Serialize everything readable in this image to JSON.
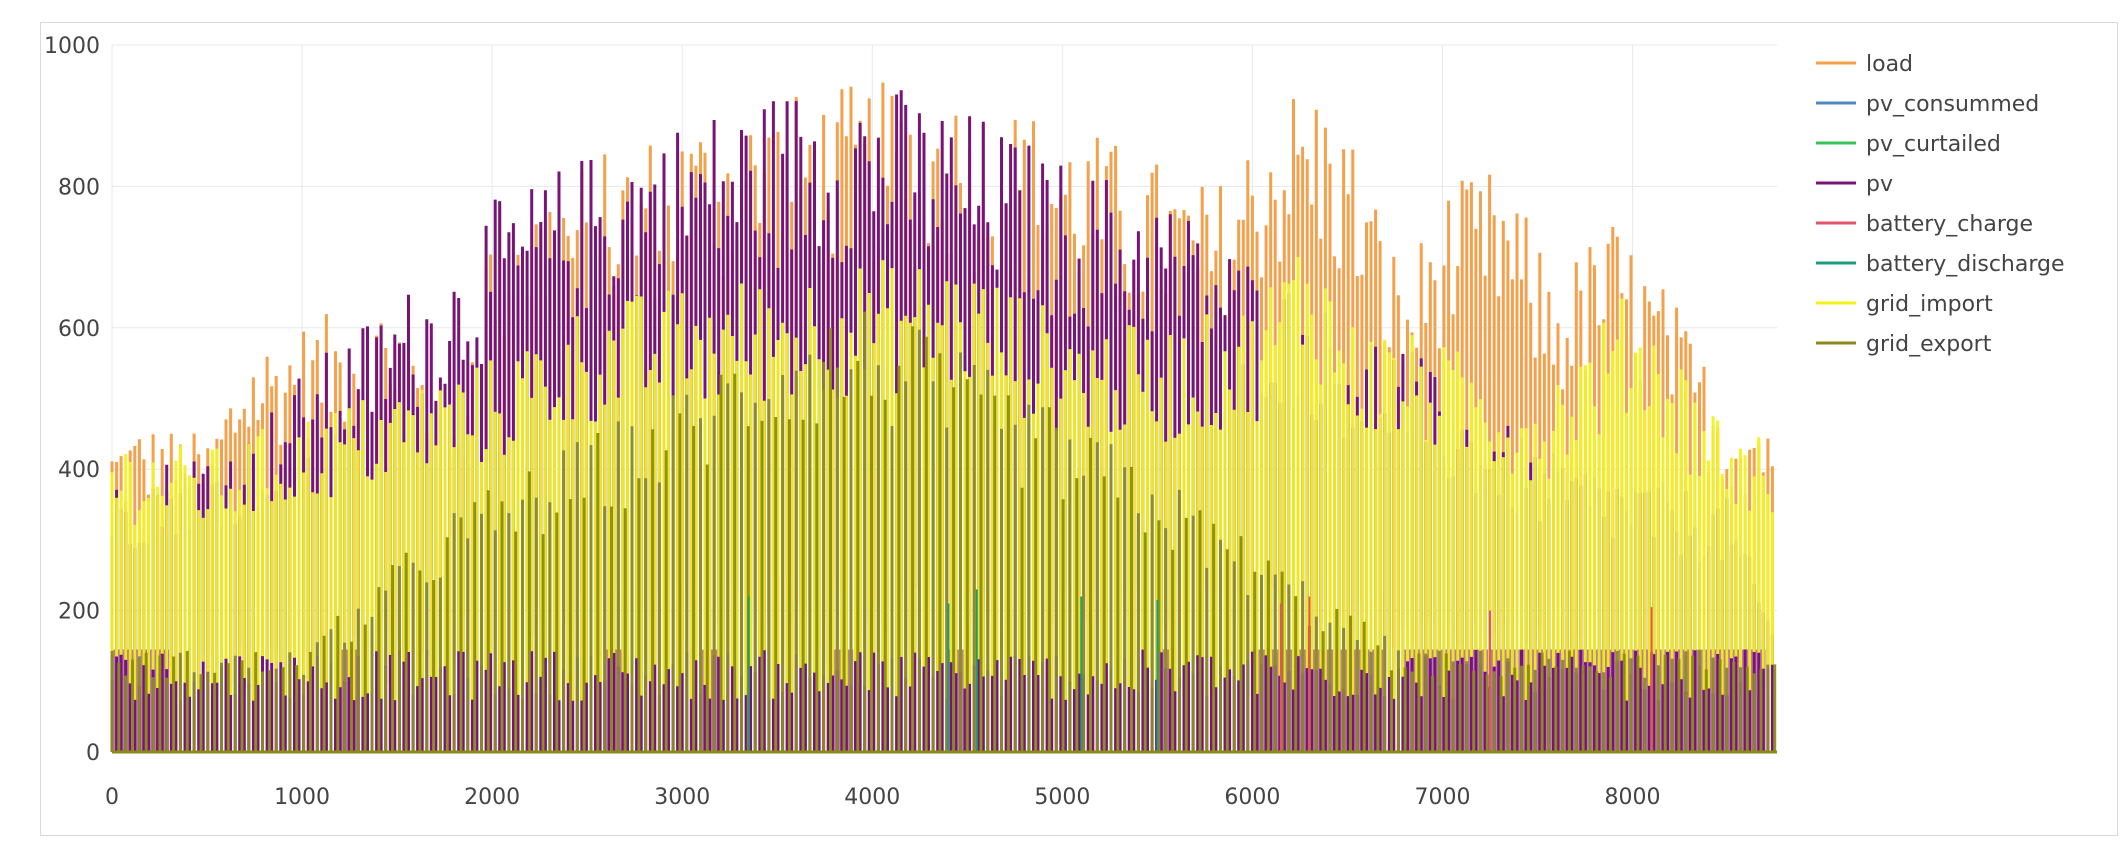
{
  "chart_data": {
    "type": "line",
    "title": "",
    "xlabel": "",
    "ylabel": "",
    "xlim": [
      0,
      8760
    ],
    "ylim": [
      0,
      1000
    ],
    "x_ticks": [
      0,
      1000,
      2000,
      3000,
      4000,
      5000,
      6000,
      7000,
      8000
    ],
    "y_ticks": [
      0,
      200,
      400,
      600,
      800,
      1000
    ],
    "grid": true,
    "legend_position": "top-right",
    "series": [
      {
        "name": "load",
        "color": "#f5a04a",
        "pattern": "daily envelope",
        "envelope": {
          "x": [
            0,
            150,
            500,
            700,
            1000,
            1500,
            1800,
            2000,
            2500,
            3000,
            3500,
            4000,
            4500,
            5000,
            5500,
            5800,
            6100,
            6300,
            6500,
            6800,
            7000,
            7300,
            7600,
            7900,
            8200,
            8500,
            8750
          ],
          "y": [
            455,
            470,
            450,
            580,
            610,
            650,
            470,
            780,
            840,
            900,
            930,
            950,
            940,
            900,
            840,
            800,
            930,
            960,
            900,
            680,
            800,
            830,
            680,
            760,
            650,
            500,
            500
          ]
        },
        "floor": {
          "x": [
            0,
            3000,
            6000,
            8750
          ],
          "y": [
            130,
            250,
            250,
            130
          ]
        }
      },
      {
        "name": "pv_consummed",
        "color": "#4f87c4",
        "pattern": "hidden beneath other series",
        "envelope": {
          "x": [
            0,
            8750
          ],
          "y": [
            0,
            0
          ]
        }
      },
      {
        "name": "pv_curtailed",
        "color": "#39c15a",
        "pattern": "hidden beneath other series",
        "envelope": {
          "x": [
            0,
            8750
          ],
          "y": [
            0,
            0
          ]
        }
      },
      {
        "name": "pv",
        "color": "#7a1378",
        "pattern": "daily solar peaks",
        "envelope": {
          "x": [
            0,
            300,
            700,
            1000,
            1500,
            1800,
            2000,
            2500,
            3000,
            3500,
            3900,
            4200,
            4600,
            5000,
            5500,
            6000,
            6300,
            6500,
            6800,
            7000,
            7300,
            7600,
            7900,
            8200,
            8500,
            8750
          ],
          "y": [
            380,
            420,
            450,
            540,
            650,
            700,
            780,
            850,
            900,
            940,
            965,
            940,
            900,
            840,
            800,
            700,
            650,
            610,
            590,
            520,
            470,
            420,
            400,
            380,
            360,
            180
          ]
        },
        "floor": {
          "x": [
            0,
            8750
          ],
          "y": [
            0,
            0
          ]
        }
      },
      {
        "name": "battery_charge",
        "color": "#e5536b",
        "pattern": "charging spikes",
        "spikes": [
          [
            6150,
            210
          ],
          [
            6300,
            220
          ],
          [
            7250,
            200
          ],
          [
            8100,
            205
          ]
        ]
      },
      {
        "name": "battery_discharge",
        "color": "#1f9b7d",
        "pattern": "discharging spikes",
        "spikes": [
          [
            3350,
            220
          ],
          [
            4400,
            210
          ],
          [
            4550,
            230
          ],
          [
            5100,
            220
          ],
          [
            5500,
            215
          ]
        ]
      },
      {
        "name": "grid_import",
        "color": "#f2f21a",
        "pattern": "daily import",
        "envelope": {
          "x": [
            0,
            500,
            1000,
            1500,
            2000,
            2500,
            3000,
            3500,
            4000,
            4500,
            5000,
            5500,
            6000,
            6300,
            6500,
            7000,
            7500,
            8000,
            8500,
            8750
          ],
          "y": [
            450,
            430,
            480,
            520,
            560,
            640,
            660,
            680,
            700,
            700,
            620,
            600,
            640,
            760,
            620,
            580,
            520,
            660,
            470,
            450
          ]
        },
        "floor": {
          "x": [
            0,
            8750
          ],
          "y": [
            145,
            145
          ]
        }
      },
      {
        "name": "grid_export",
        "color": "#8c8a1c",
        "pattern": "daily export",
        "envelope": {
          "x": [
            0,
            1000,
            1800,
            2300,
            3000,
            3500,
            4000,
            4500,
            5000,
            5500,
            6000,
            6800,
            8750
          ],
          "y": [
            145,
            145,
            350,
            420,
            520,
            620,
            640,
            560,
            480,
            400,
            300,
            145,
            145
          ]
        },
        "floor": {
          "x": [
            0,
            8750
          ],
          "y": [
            0,
            0
          ]
        }
      }
    ],
    "step_band": {
      "y": 145,
      "on_color": "#7a1378",
      "on_ranges": [
        [
          0,
          300
        ],
        [
          1200,
          1300
        ],
        [
          2600,
          2700
        ],
        [
          3100,
          3200
        ],
        [
          3800,
          3900
        ],
        [
          4400,
          4500
        ],
        [
          5500,
          5600
        ],
        [
          6000,
          6700
        ],
        [
          6800,
          8700
        ]
      ]
    }
  }
}
